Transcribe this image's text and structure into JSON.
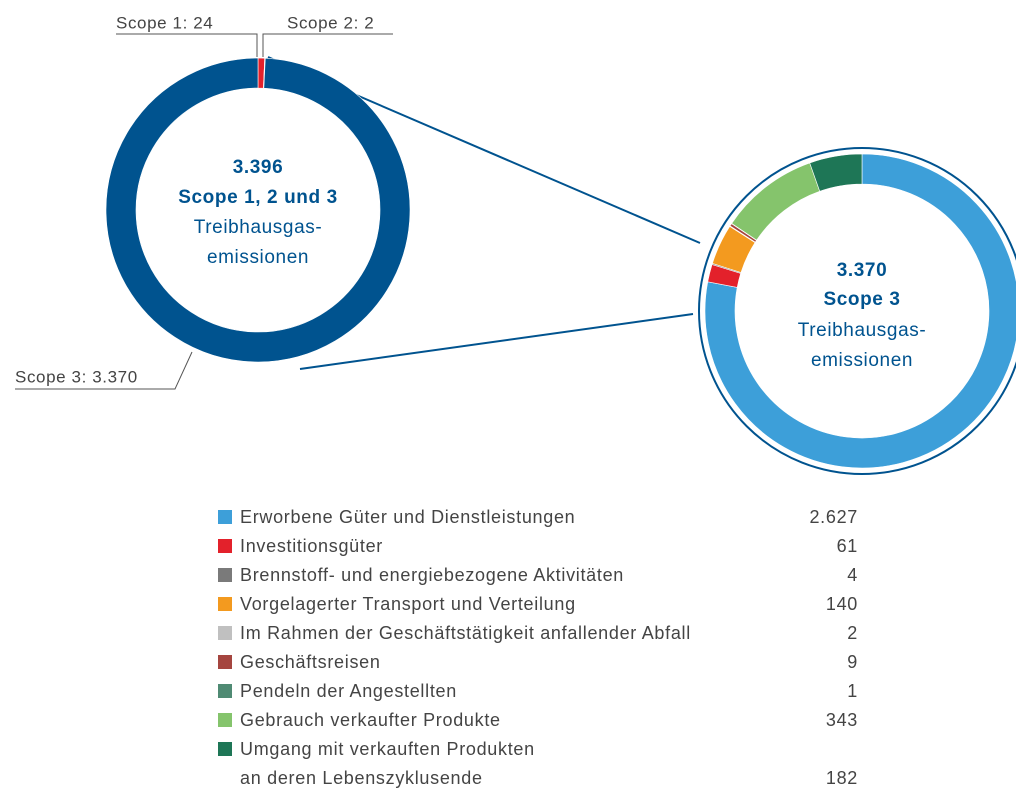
{
  "chart_data": [
    {
      "type": "donut",
      "center_text": [
        "3.396",
        "Scope 1, 2 und 3",
        "Treibhausgas-",
        "emissionen"
      ],
      "labels": [
        "Scope 1: 24",
        "Scope 2: 2",
        "Scope 3: 3.370"
      ],
      "values": [
        24,
        2,
        3370
      ],
      "colors": [
        "#e3212b",
        "#b8141c",
        "#00538f"
      ]
    },
    {
      "type": "donut",
      "center_text": [
        "3.370",
        "Scope 3",
        "Treibhausgas-",
        "emissionen"
      ],
      "categories": [
        "Erworbene Güter und Dienstleistungen",
        "Investitionsgüter",
        "Brennstoff- und energiebezogene Aktivitäten",
        "Vorgelagerter Transport und Verteilung",
        "Im Rahmen der Geschäftstätigkeit anfallender Abfall",
        "Geschäftsreisen",
        "Pendeln der Angestellten",
        "Gebrauch verkaufter Produkte",
        "Umgang mit verkauften Produkten\nan deren Lebenszyklusende"
      ],
      "values": [
        2627,
        61,
        4,
        140,
        2,
        9,
        1,
        343,
        182
      ],
      "value_labels": [
        "2.627",
        "61",
        "4",
        "140",
        "2",
        "9",
        "1",
        "343",
        "182"
      ],
      "colors": [
        "#3d9fd9",
        "#e3212b",
        "#7a7a7a",
        "#f39a1f",
        "#c0c0c0",
        "#a5453f",
        "#4f8a73",
        "#85c46c",
        "#1e7656"
      ]
    }
  ]
}
